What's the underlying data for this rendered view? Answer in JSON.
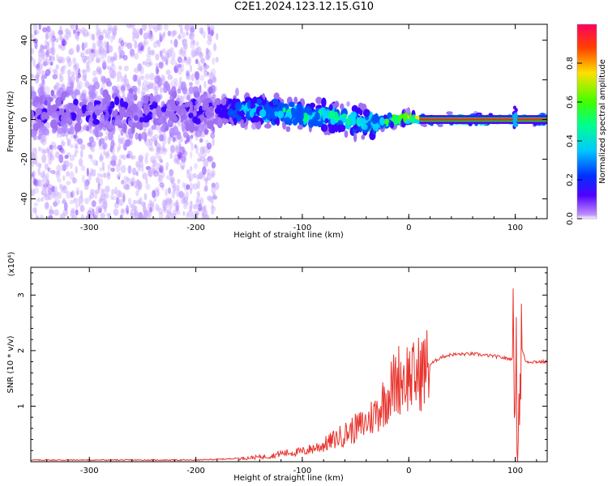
{
  "title": "C2E1.2024.123.12.15.G10",
  "chart_data": [
    {
      "type": "heatmap",
      "xlabel": "Height of straight line (km)",
      "ylabel": "Frequency (Hz)",
      "xlim": [
        -355,
        130
      ],
      "ylim": [
        -50,
        48
      ],
      "xticks": [
        -300,
        -200,
        -100,
        0,
        100
      ],
      "yticks": [
        -40,
        -20,
        0,
        20,
        40
      ],
      "colorbar": {
        "label": "Normalized spectral amplitude",
        "range": [
          0,
          1
        ],
        "ticks": [
          "0.0",
          "0.2",
          "0.4",
          "0.6",
          "0.8"
        ],
        "tick_values": [
          0.0,
          0.2,
          0.4,
          0.6,
          0.8
        ],
        "colormap": [
          "#ffffff",
          "#a070f0",
          "#3a00ff",
          "#0050ff",
          "#00d8ff",
          "#00ff80",
          "#40ff00",
          "#ffe000",
          "#ff5000",
          "#ff0050"
        ]
      },
      "ridge": {
        "center_frequency": [
          [
            -355,
            4
          ],
          [
            -250,
            4
          ],
          [
            -180,
            4
          ],
          [
            -150,
            5
          ],
          [
            -120,
            4
          ],
          [
            -100,
            2
          ],
          [
            -80,
            2
          ],
          [
            -50,
            -1
          ],
          [
            -30,
            -2
          ],
          [
            -10,
            0
          ],
          [
            0,
            1
          ],
          [
            10,
            0
          ],
          [
            90,
            0
          ],
          [
            130,
            0
          ]
        ],
        "peak_amplitude": [
          [
            -355,
            0.2
          ],
          [
            -180,
            0.2
          ],
          [
            -160,
            0.4
          ],
          [
            -100,
            0.5
          ],
          [
            -40,
            0.45
          ],
          [
            -20,
            0.6
          ],
          [
            10,
            0.8
          ],
          [
            50,
            0.95
          ],
          [
            130,
            0.9
          ]
        ]
      }
    },
    {
      "type": "line",
      "xlabel": "Height of straight line (km)",
      "ylabel": "SNR (10 * v/v)",
      "y_multiplier": "(x10⁴)",
      "xlim": [
        -355,
        130
      ],
      "ylim": [
        0,
        3.5
      ],
      "xticks": [
        -300,
        -200,
        -100,
        0,
        100
      ],
      "yticks": [
        1,
        2,
        3
      ],
      "color": "#e8342e",
      "series": [
        {
          "x": [
            -355,
            -300,
            -250,
            -200,
            -170,
            -150,
            -130,
            -120,
            -100,
            -80,
            -60,
            -50,
            -40,
            -30,
            -20,
            -10,
            0,
            5,
            10,
            20,
            30,
            40,
            60,
            80,
            95,
            100,
            103,
            105,
            110,
            130
          ],
          "y": [
            0.02,
            0.02,
            0.02,
            0.02,
            0.04,
            0.07,
            0.1,
            0.15,
            0.18,
            0.3,
            0.5,
            0.6,
            0.7,
            0.9,
            1.2,
            1.5,
            1.55,
            1.5,
            1.6,
            1.75,
            1.88,
            1.93,
            1.94,
            1.9,
            1.85,
            1.9,
            0.5,
            2.1,
            1.8,
            1.8
          ]
        }
      ]
    }
  ]
}
